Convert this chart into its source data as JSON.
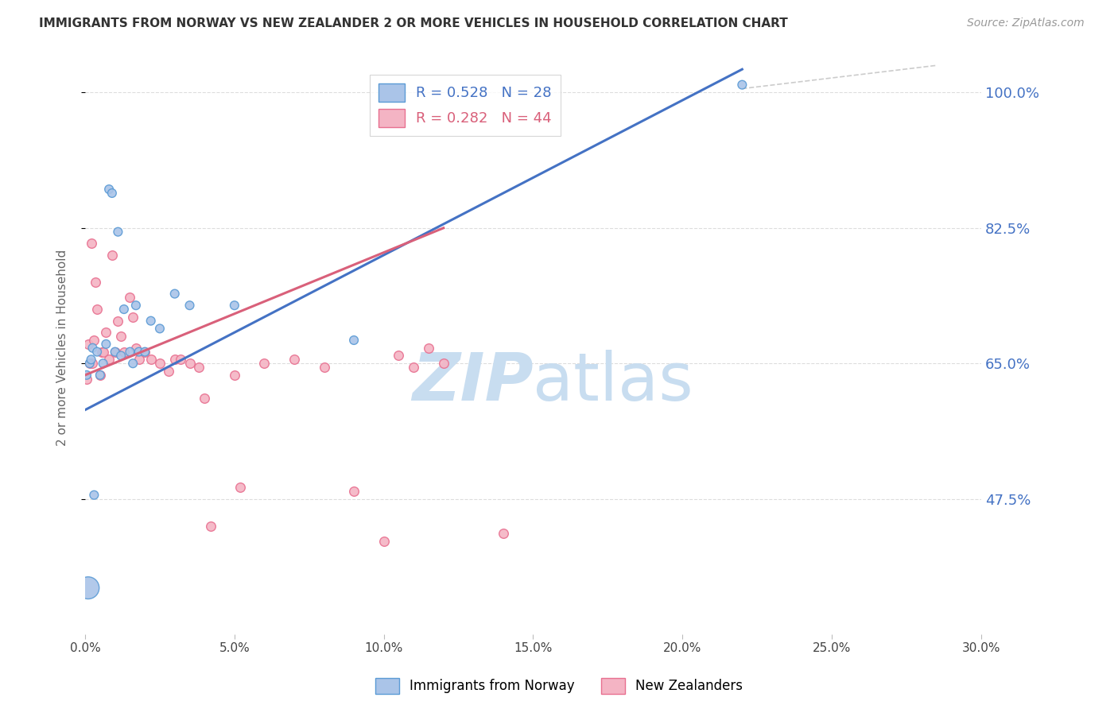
{
  "title": "IMMIGRANTS FROM NORWAY VS NEW ZEALANDER 2 OR MORE VEHICLES IN HOUSEHOLD CORRELATION CHART",
  "source": "Source: ZipAtlas.com",
  "ylabel": "2 or more Vehicles in Household",
  "x_min": 0.0,
  "x_max": 30.0,
  "y_min": 30.0,
  "y_max": 104.0,
  "x_ticks": [
    0.0,
    5.0,
    10.0,
    15.0,
    20.0,
    25.0,
    30.0
  ],
  "y_ticks": [
    47.5,
    65.0,
    82.5,
    100.0
  ],
  "x_tick_labels": [
    "0.0%",
    "5.0%",
    "10.0%",
    "15.0%",
    "20.0%",
    "25.0%",
    "30.0%"
  ],
  "y_tick_labels": [
    "47.5%",
    "65.0%",
    "82.5%",
    "100.0%"
  ],
  "norway_R": 0.528,
  "norway_N": 28,
  "nz_R": 0.282,
  "nz_N": 44,
  "norway_color": "#aac4e8",
  "norway_edge_color": "#5b9bd5",
  "nz_color": "#f4b4c4",
  "nz_edge_color": "#e87090",
  "norway_line_color": "#4472c4",
  "nz_line_color": "#d9607a",
  "ref_line_color": "#cccccc",
  "title_color": "#333333",
  "source_color": "#999999",
  "axis_label_color": "#666666",
  "right_tick_color": "#4472c4",
  "grid_color": "#dddddd",
  "watermark_zip": "ZIP",
  "watermark_atlas": "atlas",
  "watermark_color_zip": "#c8ddf0",
  "watermark_color_atlas": "#c8ddf0",
  "legend_norway_label": "Immigrants from Norway",
  "legend_nz_label": "New Zealanders",
  "norway_line_x0": 0.0,
  "norway_line_y0": 59.0,
  "norway_line_x1": 22.0,
  "norway_line_y1": 103.0,
  "nz_line_x0": 0.0,
  "nz_line_y0": 63.5,
  "nz_line_x1": 12.0,
  "nz_line_y1": 82.5,
  "ref_line_x0": 22.0,
  "ref_line_y0": 100.5,
  "ref_line_x1": 28.5,
  "ref_line_y1": 103.5,
  "norway_x": [
    0.05,
    0.1,
    0.15,
    0.2,
    0.25,
    0.3,
    0.4,
    0.5,
    0.6,
    0.7,
    0.8,
    0.9,
    1.0,
    1.1,
    1.2,
    1.3,
    1.5,
    1.6,
    1.7,
    1.8,
    2.0,
    2.2,
    2.5,
    3.0,
    3.5,
    5.0,
    9.0,
    22.0
  ],
  "norway_y": [
    63.5,
    36.0,
    65.0,
    65.5,
    67.0,
    48.0,
    66.5,
    63.5,
    65.0,
    67.5,
    87.5,
    87.0,
    66.5,
    82.0,
    66.0,
    72.0,
    66.5,
    65.0,
    72.5,
    66.5,
    66.5,
    70.5,
    69.5,
    74.0,
    72.5,
    72.5,
    68.0,
    101.0
  ],
  "norway_sizes": [
    60,
    400,
    60,
    60,
    60,
    60,
    60,
    60,
    60,
    60,
    60,
    60,
    60,
    60,
    60,
    60,
    60,
    60,
    60,
    60,
    60,
    60,
    60,
    60,
    60,
    60,
    60,
    60
  ],
  "nz_x": [
    0.05,
    0.1,
    0.15,
    0.2,
    0.25,
    0.3,
    0.35,
    0.4,
    0.5,
    0.55,
    0.6,
    0.7,
    0.8,
    0.9,
    1.0,
    1.1,
    1.2,
    1.3,
    1.5,
    1.6,
    1.7,
    1.8,
    2.0,
    2.2,
    2.5,
    2.8,
    3.0,
    3.2,
    3.5,
    3.8,
    4.0,
    4.2,
    5.0,
    5.2,
    6.0,
    7.0,
    8.0,
    9.0,
    10.0,
    10.5,
    11.0,
    11.5,
    12.0,
    14.0
  ],
  "nz_y": [
    63.0,
    67.5,
    65.0,
    80.5,
    65.0,
    68.0,
    75.5,
    72.0,
    63.5,
    66.5,
    66.5,
    69.0,
    65.5,
    79.0,
    66.5,
    70.5,
    68.5,
    66.5,
    73.5,
    71.0,
    67.0,
    65.5,
    66.5,
    65.5,
    65.0,
    64.0,
    65.5,
    65.5,
    65.0,
    64.5,
    60.5,
    44.0,
    63.5,
    49.0,
    65.0,
    65.5,
    64.5,
    48.5,
    42.0,
    66.0,
    64.5,
    67.0,
    65.0,
    43.0
  ]
}
